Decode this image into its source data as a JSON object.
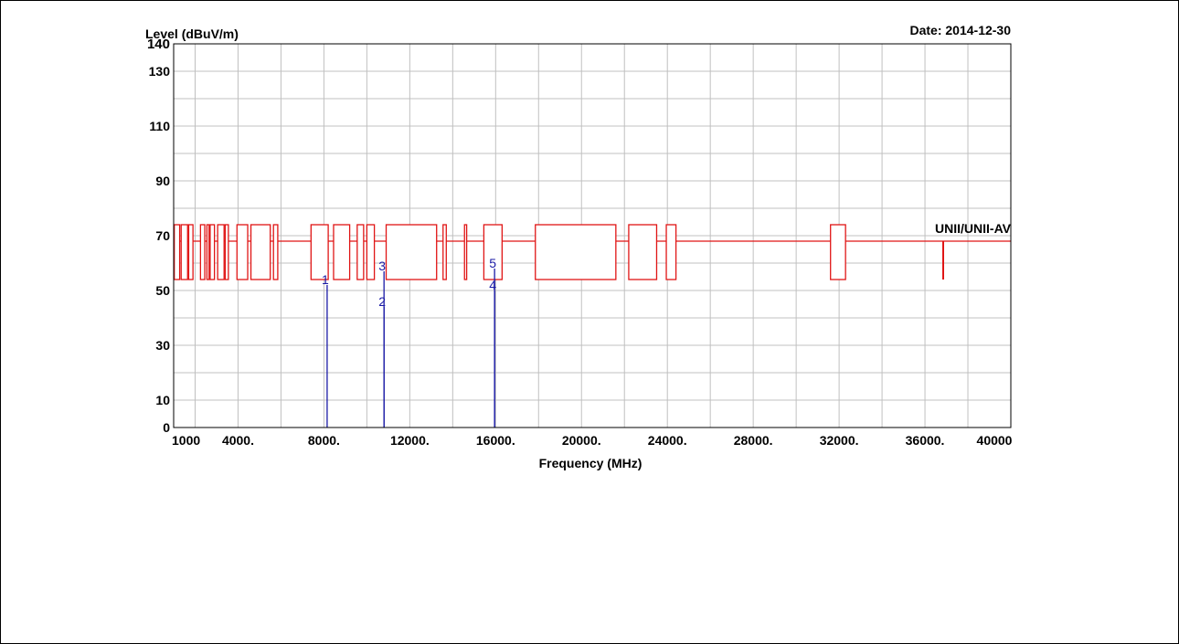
{
  "colors": {
    "limit": "#e01515",
    "marker": "#1a1aa6",
    "grid": "#c0c0c0",
    "axis": "#000000",
    "background": "#ffffff"
  },
  "chart_data": {
    "type": "line",
    "title": "",
    "date_label": "Date: 2014-12-30",
    "ylabel": "Level (dBuV/m)",
    "xlabel": "Frequency (MHz)",
    "xlim": [
      1000,
      40000
    ],
    "ylim": [
      0,
      140
    ],
    "grid": true,
    "x_ticks": [
      {
        "value": 1000,
        "label": "1000"
      },
      {
        "value": 4000,
        "label": "4000."
      },
      {
        "value": 8000,
        "label": "8000."
      },
      {
        "value": 12000,
        "label": "12000."
      },
      {
        "value": 16000,
        "label": "16000."
      },
      {
        "value": 20000,
        "label": "20000."
      },
      {
        "value": 24000,
        "label": "24000."
      },
      {
        "value": 28000,
        "label": "28000."
      },
      {
        "value": 32000,
        "label": "32000."
      },
      {
        "value": 36000,
        "label": "36000."
      },
      {
        "value": 40000,
        "label": "40000"
      }
    ],
    "y_ticks": [
      0,
      10,
      30,
      50,
      70,
      90,
      110,
      130,
      140
    ],
    "limit_line": {
      "level": 68,
      "name": "UNII/UNII-AV",
      "notch_top": 74,
      "notch_bottom": 54,
      "notches": [
        [
          1030,
          1280
        ],
        [
          1350,
          1650
        ],
        [
          1700,
          1900
        ],
        [
          2250,
          2450
        ],
        [
          2550,
          2650
        ],
        [
          2700,
          2900
        ],
        [
          3050,
          3350
        ],
        [
          3400,
          3550
        ],
        [
          3950,
          4450
        ],
        [
          4600,
          5500
        ],
        [
          5650,
          5850
        ],
        [
          7400,
          8200
        ],
        [
          8450,
          9200
        ],
        [
          9550,
          9850
        ],
        [
          10000,
          10350
        ],
        [
          10900,
          13250
        ],
        [
          13550,
          13700
        ],
        [
          14550,
          14650
        ],
        [
          15450,
          16300
        ],
        [
          17850,
          21600
        ],
        [
          22200,
          23500
        ],
        [
          23950,
          24400
        ],
        [
          31600,
          32300
        ]
      ],
      "spikes": [
        36850
      ]
    },
    "markers": [
      {
        "label": "1",
        "x": 8150,
        "y": 52
      },
      {
        "label": "2",
        "x": 10800,
        "y": 44
      },
      {
        "label": "3",
        "x": 10800,
        "y": 57
      },
      {
        "label": "4",
        "x": 15950,
        "y": 50
      },
      {
        "label": "5",
        "x": 15950,
        "y": 58
      }
    ]
  }
}
